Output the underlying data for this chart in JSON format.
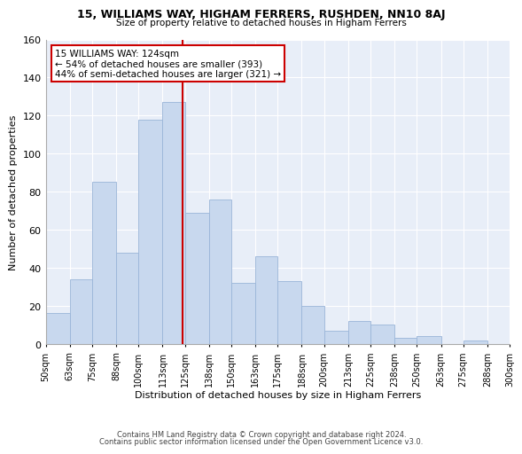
{
  "title": "15, WILLIAMS WAY, HIGHAM FERRERS, RUSHDEN, NN10 8AJ",
  "subtitle": "Size of property relative to detached houses in Higham Ferrers",
  "xlabel": "Distribution of detached houses by size in Higham Ferrers",
  "ylabel": "Number of detached properties",
  "bin_edges": [
    50,
    63,
    75,
    88,
    100,
    113,
    125,
    138,
    150,
    163,
    175,
    188,
    200,
    213,
    225,
    238,
    250,
    263,
    275,
    288,
    300
  ],
  "bar_heights": [
    16,
    34,
    85,
    48,
    118,
    127,
    69,
    76,
    32,
    46,
    33,
    20,
    7,
    12,
    10,
    3,
    4,
    0,
    2,
    0
  ],
  "bar_color": "#c8d8ee",
  "bar_edgecolor": "#9ab5d8",
  "reference_line_x": 124,
  "reference_line_color": "#cc0000",
  "ylim": [
    0,
    160
  ],
  "yticks": [
    0,
    20,
    40,
    60,
    80,
    100,
    120,
    140,
    160
  ],
  "annotation_title": "15 WILLIAMS WAY: 124sqm",
  "annotation_line1": "← 54% of detached houses are smaller (393)",
  "annotation_line2": "44% of semi-detached houses are larger (321) →",
  "annotation_box_color": "#ffffff",
  "annotation_box_edgecolor": "#cc0000",
  "footer_line1": "Contains HM Land Registry data © Crown copyright and database right 2024.",
  "footer_line2": "Contains public sector information licensed under the Open Government Licence v3.0.",
  "tick_labels": [
    "50sqm",
    "63sqm",
    "75sqm",
    "88sqm",
    "100sqm",
    "113sqm",
    "125sqm",
    "138sqm",
    "150sqm",
    "163sqm",
    "175sqm",
    "188sqm",
    "200sqm",
    "213sqm",
    "225sqm",
    "238sqm",
    "250sqm",
    "263sqm",
    "275sqm",
    "288sqm",
    "300sqm"
  ],
  "background_color": "#ffffff",
  "plot_bg_color": "#e8eef8",
  "grid_color": "#ffffff"
}
